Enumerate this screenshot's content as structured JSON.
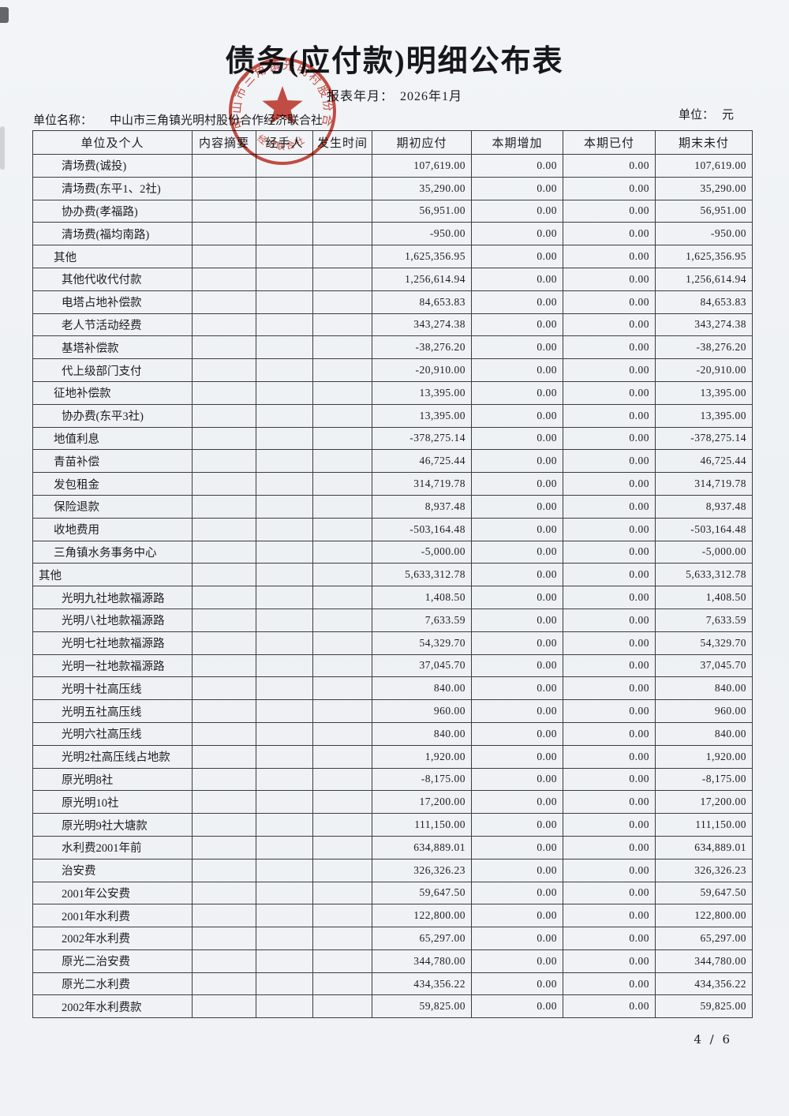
{
  "title": "债务(应付款)明细公布表",
  "report_period_label": "报表年月：",
  "report_period": "2026年1月",
  "unit_name_label": "单位名称：",
  "unit_name": "中山市三角镇光明村股份合作经济联合社",
  "unit_label": "单位：",
  "unit_value": "元",
  "page_indicator": "4 / 6",
  "stamp": {
    "ring_text": "中山市三角镇光明村股份合作",
    "bottom_text": "经济联合社",
    "color": "#c5372b"
  },
  "table": {
    "headers": [
      "单位及个人",
      "内容摘要",
      "经手人",
      "发生时间",
      "期初应付",
      "本期增加",
      "本期已付",
      "期末未付"
    ],
    "rows": [
      {
        "name": "清场费(诚投)",
        "indent": 2,
        "summary": "",
        "handler": "",
        "date": "",
        "opening": "107,619.00",
        "increase": "0.00",
        "paid": "0.00",
        "closing": "107,619.00"
      },
      {
        "name": "清场费(东平1、2社)",
        "indent": 2,
        "summary": "",
        "handler": "",
        "date": "",
        "opening": "35,290.00",
        "increase": "0.00",
        "paid": "0.00",
        "closing": "35,290.00"
      },
      {
        "name": "协办费(孝福路)",
        "indent": 2,
        "summary": "",
        "handler": "",
        "date": "",
        "opening": "56,951.00",
        "increase": "0.00",
        "paid": "0.00",
        "closing": "56,951.00"
      },
      {
        "name": "清场费(福均南路)",
        "indent": 2,
        "summary": "",
        "handler": "",
        "date": "",
        "opening": "-950.00",
        "increase": "0.00",
        "paid": "0.00",
        "closing": "-950.00"
      },
      {
        "name": "其他",
        "indent": 1,
        "summary": "",
        "handler": "",
        "date": "",
        "opening": "1,625,356.95",
        "increase": "0.00",
        "paid": "0.00",
        "closing": "1,625,356.95"
      },
      {
        "name": "其他代收代付款",
        "indent": 2,
        "summary": "",
        "handler": "",
        "date": "",
        "opening": "1,256,614.94",
        "increase": "0.00",
        "paid": "0.00",
        "closing": "1,256,614.94"
      },
      {
        "name": "电塔占地补偿款",
        "indent": 2,
        "summary": "",
        "handler": "",
        "date": "",
        "opening": "84,653.83",
        "increase": "0.00",
        "paid": "0.00",
        "closing": "84,653.83"
      },
      {
        "name": "老人节活动经费",
        "indent": 2,
        "summary": "",
        "handler": "",
        "date": "",
        "opening": "343,274.38",
        "increase": "0.00",
        "paid": "0.00",
        "closing": "343,274.38"
      },
      {
        "name": "基塔补偿款",
        "indent": 2,
        "summary": "",
        "handler": "",
        "date": "",
        "opening": "-38,276.20",
        "increase": "0.00",
        "paid": "0.00",
        "closing": "-38,276.20"
      },
      {
        "name": "代上级部门支付",
        "indent": 2,
        "summary": "",
        "handler": "",
        "date": "",
        "opening": "-20,910.00",
        "increase": "0.00",
        "paid": "0.00",
        "closing": "-20,910.00"
      },
      {
        "name": "征地补偿款",
        "indent": 1,
        "summary": "",
        "handler": "",
        "date": "",
        "opening": "13,395.00",
        "increase": "0.00",
        "paid": "0.00",
        "closing": "13,395.00"
      },
      {
        "name": "协办费(东平3社)",
        "indent": 2,
        "summary": "",
        "handler": "",
        "date": "",
        "opening": "13,395.00",
        "increase": "0.00",
        "paid": "0.00",
        "closing": "13,395.00"
      },
      {
        "name": "地值利息",
        "indent": 1,
        "summary": "",
        "handler": "",
        "date": "",
        "opening": "-378,275.14",
        "increase": "0.00",
        "paid": "0.00",
        "closing": "-378,275.14"
      },
      {
        "name": "青苗补偿",
        "indent": 1,
        "summary": "",
        "handler": "",
        "date": "",
        "opening": "46,725.44",
        "increase": "0.00",
        "paid": "0.00",
        "closing": "46,725.44"
      },
      {
        "name": "发包租金",
        "indent": 1,
        "summary": "",
        "handler": "",
        "date": "",
        "opening": "314,719.78",
        "increase": "0.00",
        "paid": "0.00",
        "closing": "314,719.78"
      },
      {
        "name": "保险退款",
        "indent": 1,
        "summary": "",
        "handler": "",
        "date": "",
        "opening": "8,937.48",
        "increase": "0.00",
        "paid": "0.00",
        "closing": "8,937.48"
      },
      {
        "name": "收地费用",
        "indent": 1,
        "summary": "",
        "handler": "",
        "date": "",
        "opening": "-503,164.48",
        "increase": "0.00",
        "paid": "0.00",
        "closing": "-503,164.48"
      },
      {
        "name": "三角镇水务事务中心",
        "indent": 1,
        "summary": "",
        "handler": "",
        "date": "",
        "opening": "-5,000.00",
        "increase": "0.00",
        "paid": "0.00",
        "closing": "-5,000.00"
      },
      {
        "name": "其他",
        "indent": 0,
        "summary": "",
        "handler": "",
        "date": "",
        "opening": "5,633,312.78",
        "increase": "0.00",
        "paid": "0.00",
        "closing": "5,633,312.78"
      },
      {
        "name": "光明九社地款福源路",
        "indent": 2,
        "summary": "",
        "handler": "",
        "date": "",
        "opening": "1,408.50",
        "increase": "0.00",
        "paid": "0.00",
        "closing": "1,408.50"
      },
      {
        "name": "光明八社地款福源路",
        "indent": 2,
        "summary": "",
        "handler": "",
        "date": "",
        "opening": "7,633.59",
        "increase": "0.00",
        "paid": "0.00",
        "closing": "7,633.59"
      },
      {
        "name": "光明七社地款福源路",
        "indent": 2,
        "summary": "",
        "handler": "",
        "date": "",
        "opening": "54,329.70",
        "increase": "0.00",
        "paid": "0.00",
        "closing": "54,329.70"
      },
      {
        "name": "光明一社地款福源路",
        "indent": 2,
        "summary": "",
        "handler": "",
        "date": "",
        "opening": "37,045.70",
        "increase": "0.00",
        "paid": "0.00",
        "closing": "37,045.70"
      },
      {
        "name": "光明十社高压线",
        "indent": 2,
        "summary": "",
        "handler": "",
        "date": "",
        "opening": "840.00",
        "increase": "0.00",
        "paid": "0.00",
        "closing": "840.00"
      },
      {
        "name": "光明五社高压线",
        "indent": 2,
        "summary": "",
        "handler": "",
        "date": "",
        "opening": "960.00",
        "increase": "0.00",
        "paid": "0.00",
        "closing": "960.00"
      },
      {
        "name": "光明六社高压线",
        "indent": 2,
        "summary": "",
        "handler": "",
        "date": "",
        "opening": "840.00",
        "increase": "0.00",
        "paid": "0.00",
        "closing": "840.00"
      },
      {
        "name": "光明2社高压线占地款",
        "indent": 2,
        "summary": "",
        "handler": "",
        "date": "",
        "opening": "1,920.00",
        "increase": "0.00",
        "paid": "0.00",
        "closing": "1,920.00"
      },
      {
        "name": "原光明8社",
        "indent": 2,
        "summary": "",
        "handler": "",
        "date": "",
        "opening": "-8,175.00",
        "increase": "0.00",
        "paid": "0.00",
        "closing": "-8,175.00"
      },
      {
        "name": "原光明10社",
        "indent": 2,
        "summary": "",
        "handler": "",
        "date": "",
        "opening": "17,200.00",
        "increase": "0.00",
        "paid": "0.00",
        "closing": "17,200.00"
      },
      {
        "name": "原光明9社大塘款",
        "indent": 2,
        "summary": "",
        "handler": "",
        "date": "",
        "opening": "111,150.00",
        "increase": "0.00",
        "paid": "0.00",
        "closing": "111,150.00"
      },
      {
        "name": "水利费2001年前",
        "indent": 2,
        "summary": "",
        "handler": "",
        "date": "",
        "opening": "634,889.01",
        "increase": "0.00",
        "paid": "0.00",
        "closing": "634,889.01"
      },
      {
        "name": "治安费",
        "indent": 2,
        "summary": "",
        "handler": "",
        "date": "",
        "opening": "326,326.23",
        "increase": "0.00",
        "paid": "0.00",
        "closing": "326,326.23"
      },
      {
        "name": "2001年公安费",
        "indent": 2,
        "summary": "",
        "handler": "",
        "date": "",
        "opening": "59,647.50",
        "increase": "0.00",
        "paid": "0.00",
        "closing": "59,647.50"
      },
      {
        "name": "2001年水利费",
        "indent": 2,
        "summary": "",
        "handler": "",
        "date": "",
        "opening": "122,800.00",
        "increase": "0.00",
        "paid": "0.00",
        "closing": "122,800.00"
      },
      {
        "name": "2002年水利费",
        "indent": 2,
        "summary": "",
        "handler": "",
        "date": "",
        "opening": "65,297.00",
        "increase": "0.00",
        "paid": "0.00",
        "closing": "65,297.00"
      },
      {
        "name": "原光二治安费",
        "indent": 2,
        "summary": "",
        "handler": "",
        "date": "",
        "opening": "344,780.00",
        "increase": "0.00",
        "paid": "0.00",
        "closing": "344,780.00"
      },
      {
        "name": "原光二水利费",
        "indent": 2,
        "summary": "",
        "handler": "",
        "date": "",
        "opening": "434,356.22",
        "increase": "0.00",
        "paid": "0.00",
        "closing": "434,356.22"
      },
      {
        "name": "2002年水利费款",
        "indent": 2,
        "summary": "",
        "handler": "",
        "date": "",
        "opening": "59,825.00",
        "increase": "0.00",
        "paid": "0.00",
        "closing": "59,825.00"
      }
    ]
  }
}
